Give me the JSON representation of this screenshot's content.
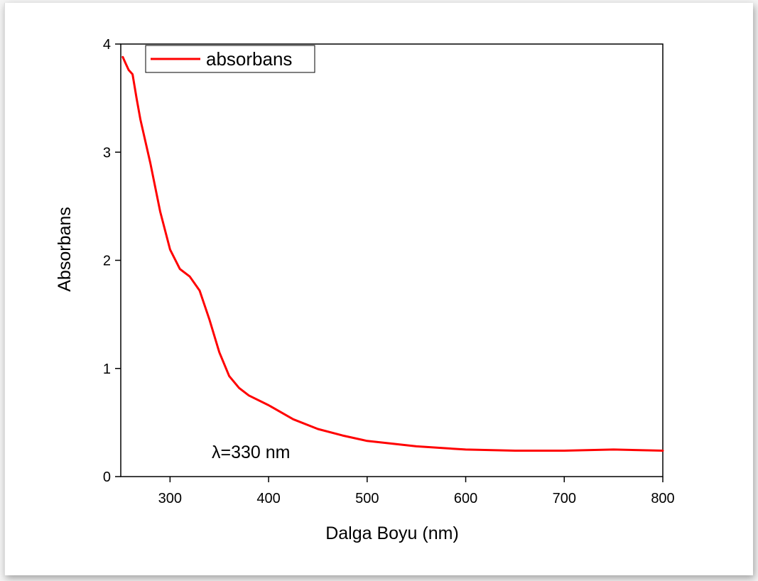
{
  "chart_data": {
    "type": "line",
    "xlabel": "Dalga Boyu (nm)",
    "ylabel": "Absorbans",
    "xlim": [
      250,
      800
    ],
    "ylim": [
      0,
      4
    ],
    "x_ticks": [
      300,
      400,
      500,
      600,
      700,
      800
    ],
    "y_ticks": [
      0,
      1,
      2,
      3,
      4
    ],
    "grid": false,
    "legend": {
      "position": "top-left",
      "entries": [
        "absorbans"
      ]
    },
    "annotation": "λ=330 nm",
    "colors": {
      "series": "#ff0000",
      "axis": "#000000"
    },
    "series": [
      {
        "name": "absorbans",
        "x": [
          252,
          255,
          258,
          262,
          266,
          270,
          280,
          290,
          300,
          310,
          320,
          330,
          340,
          350,
          360,
          370,
          380,
          400,
          425,
          450,
          475,
          500,
          550,
          600,
          650,
          700,
          750,
          800
        ],
        "y": [
          3.88,
          3.82,
          3.76,
          3.72,
          3.5,
          3.3,
          2.9,
          2.45,
          2.1,
          1.92,
          1.85,
          1.72,
          1.45,
          1.15,
          0.93,
          0.82,
          0.75,
          0.66,
          0.53,
          0.44,
          0.38,
          0.33,
          0.28,
          0.25,
          0.24,
          0.24,
          0.25,
          0.24
        ]
      }
    ]
  }
}
